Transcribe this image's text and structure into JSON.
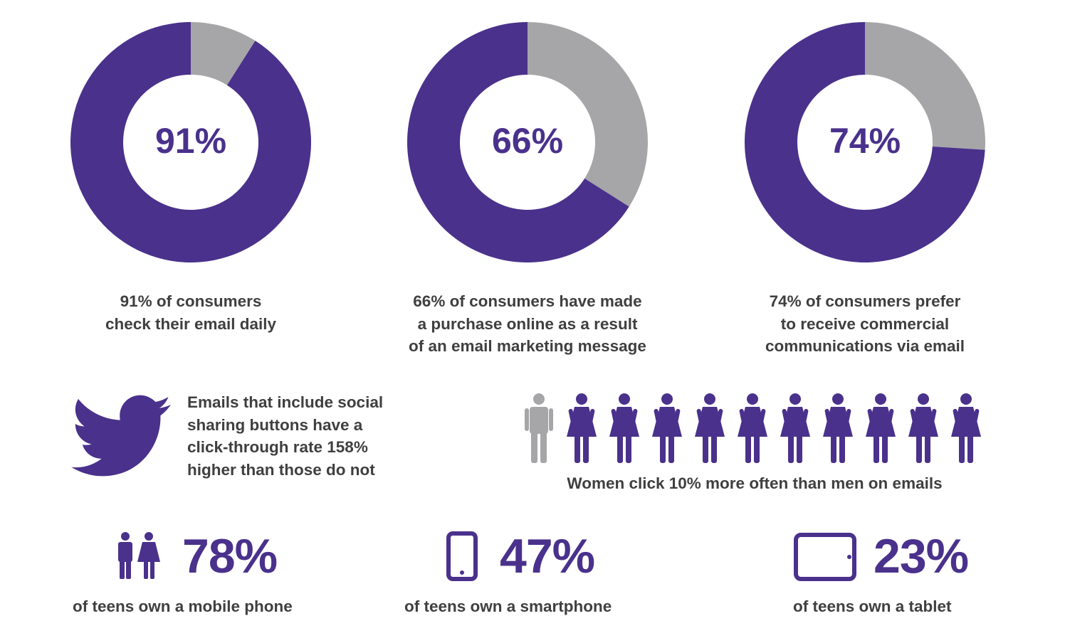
{
  "colors": {
    "primary": "#4a318c",
    "secondary": "#a6a6a8",
    "text": "#3f3f3f"
  },
  "chart_data": [
    {
      "type": "pie",
      "label": "91%",
      "values": [
        91,
        9
      ],
      "caption": "91% of consumers\ncheck their email daily"
    },
    {
      "type": "pie",
      "label": "66%",
      "values": [
        66,
        34
      ],
      "caption": "66% of consumers have made\na purchase online as a result\nof an email marketing message"
    },
    {
      "type": "pie",
      "label": "74%",
      "values": [
        74,
        26
      ],
      "caption": "74% of consumers prefer\nto receive commercial\ncommunications via email"
    }
  ],
  "social": {
    "icon": "twitter-bird-icon",
    "text": "Emails that include social\nsharing buttons have a\nclick-through rate 158%\nhigher than those do not"
  },
  "people": {
    "men_count": 1,
    "women_count": 10,
    "caption": "Women click 10% more often than men on emails"
  },
  "stats": [
    {
      "icon": "couple-icon",
      "value": "78%",
      "label": "of teens own a mobile phone"
    },
    {
      "icon": "smartphone-icon",
      "value": "47%",
      "label": "of teens own a smartphone"
    },
    {
      "icon": "tablet-icon",
      "value": "23%",
      "label": "of teens own a tablet"
    }
  ]
}
